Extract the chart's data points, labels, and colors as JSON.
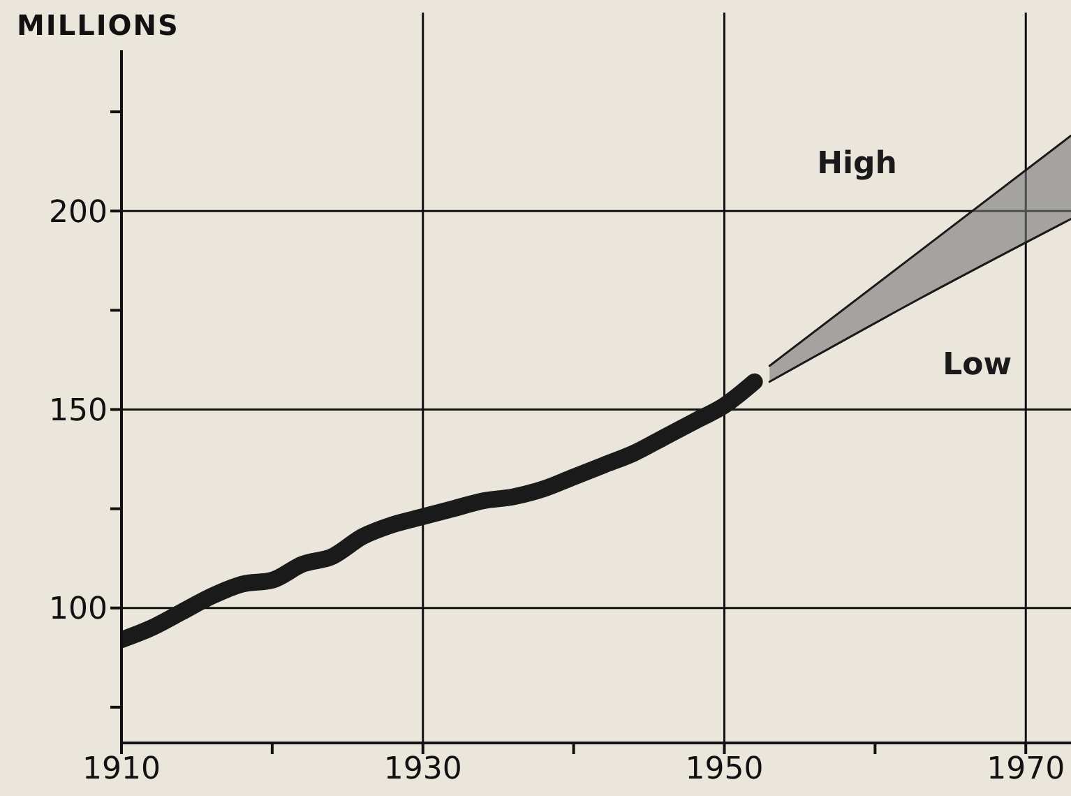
{
  "chart_data": {
    "type": "line",
    "ylabel": "MILLIONS",
    "series": [
      {
        "color": "#1a1a1a",
        "x": [
          1910,
          1912,
          1914,
          1916,
          1918,
          1920,
          1922,
          1924,
          1926,
          1928,
          1930,
          1932,
          1934,
          1936,
          1938,
          1940,
          1942,
          1944,
          1946,
          1948,
          1950,
          1952
        ],
        "values": [
          92,
          95,
          99,
          103,
          106,
          107,
          111,
          113,
          118,
          121,
          123,
          125,
          127,
          128,
          130,
          133,
          136,
          139,
          143,
          147,
          151,
          157
        ]
      },
      {
        "name": "High",
        "color": "#1a1a1a",
        "x": [
          1953,
          1963,
          1973
        ],
        "values": [
          161,
          190,
          219
        ]
      },
      {
        "name": "Low",
        "color": "#1a1a1a",
        "x": [
          1953,
          1963,
          1973
        ],
        "values": [
          157,
          178,
          198
        ],
        "lower": [
          157,
          178,
          198
        ],
        "upper": [
          161,
          190,
          219
        ]
      }
    ],
    "xlim": [
      1910,
      1973
    ],
    "xticks": [
      1910,
      {
        "value": 1920,
        "label": null
      },
      1930,
      {
        "value": 1940,
        "label": null
      },
      1950,
      {
        "value": 1960,
        "label": null
      },
      1970
    ],
    "ylim": [
      66,
      250
    ],
    "yticks": [
      {
        "value": 75,
        "label": null
      },
      100,
      {
        "value": 125,
        "label": null
      },
      150,
      {
        "value": 175,
        "label": null
      },
      200,
      {
        "value": 225,
        "label": null
      }
    ],
    "grid": true,
    "legend": false,
    "marker": "none",
    "line_style": "solid"
  }
}
